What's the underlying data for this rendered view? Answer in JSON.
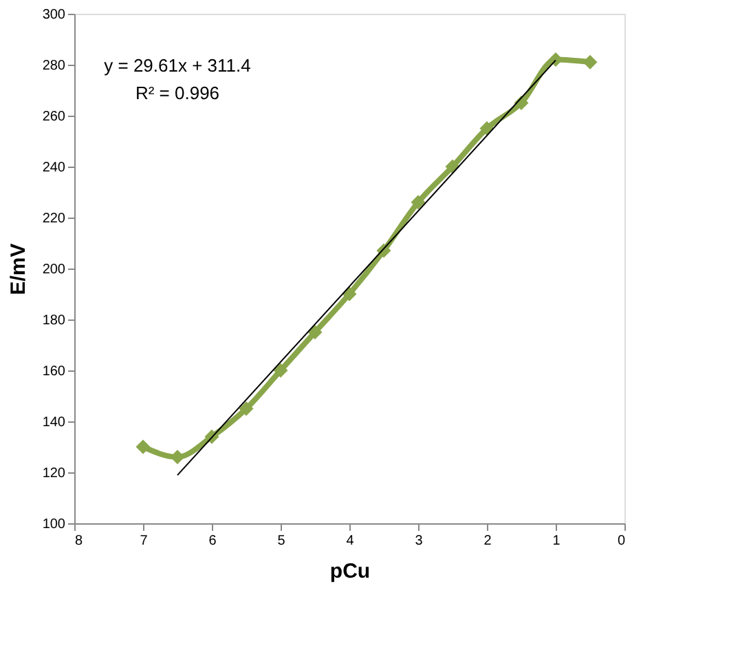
{
  "chart_data": {
    "type": "line",
    "xlabel": "pCu",
    "ylabel": "E/mV",
    "annotations": [
      "y = 29.61x + 311.4",
      "R² = 0.996"
    ],
    "x": [
      7,
      6.5,
      6,
      5.5,
      5,
      4.5,
      4,
      3.5,
      3,
      2.5,
      2,
      1.5,
      1,
      0.5
    ],
    "series": [
      {
        "color": "#8aa64a",
        "values": [
          130,
          126,
          134,
          145,
          160,
          175,
          190,
          207,
          226,
          240,
          255,
          265,
          282,
          281
        ],
        "marker": "diamond"
      },
      {
        "type": "line",
        "color": "#000000",
        "x": [
          6.5,
          1
        ],
        "values": [
          118.9,
          281.8
        ],
        "marker": "none"
      }
    ],
    "xlim": [
      8,
      0
    ],
    "xticks": [
      8,
      7,
      6,
      5,
      4,
      3,
      2,
      1,
      0
    ],
    "ylim": [
      100,
      300
    ],
    "yticks": [
      100,
      120,
      140,
      160,
      180,
      200,
      220,
      240,
      260,
      280,
      300
    ],
    "grid": false
  }
}
